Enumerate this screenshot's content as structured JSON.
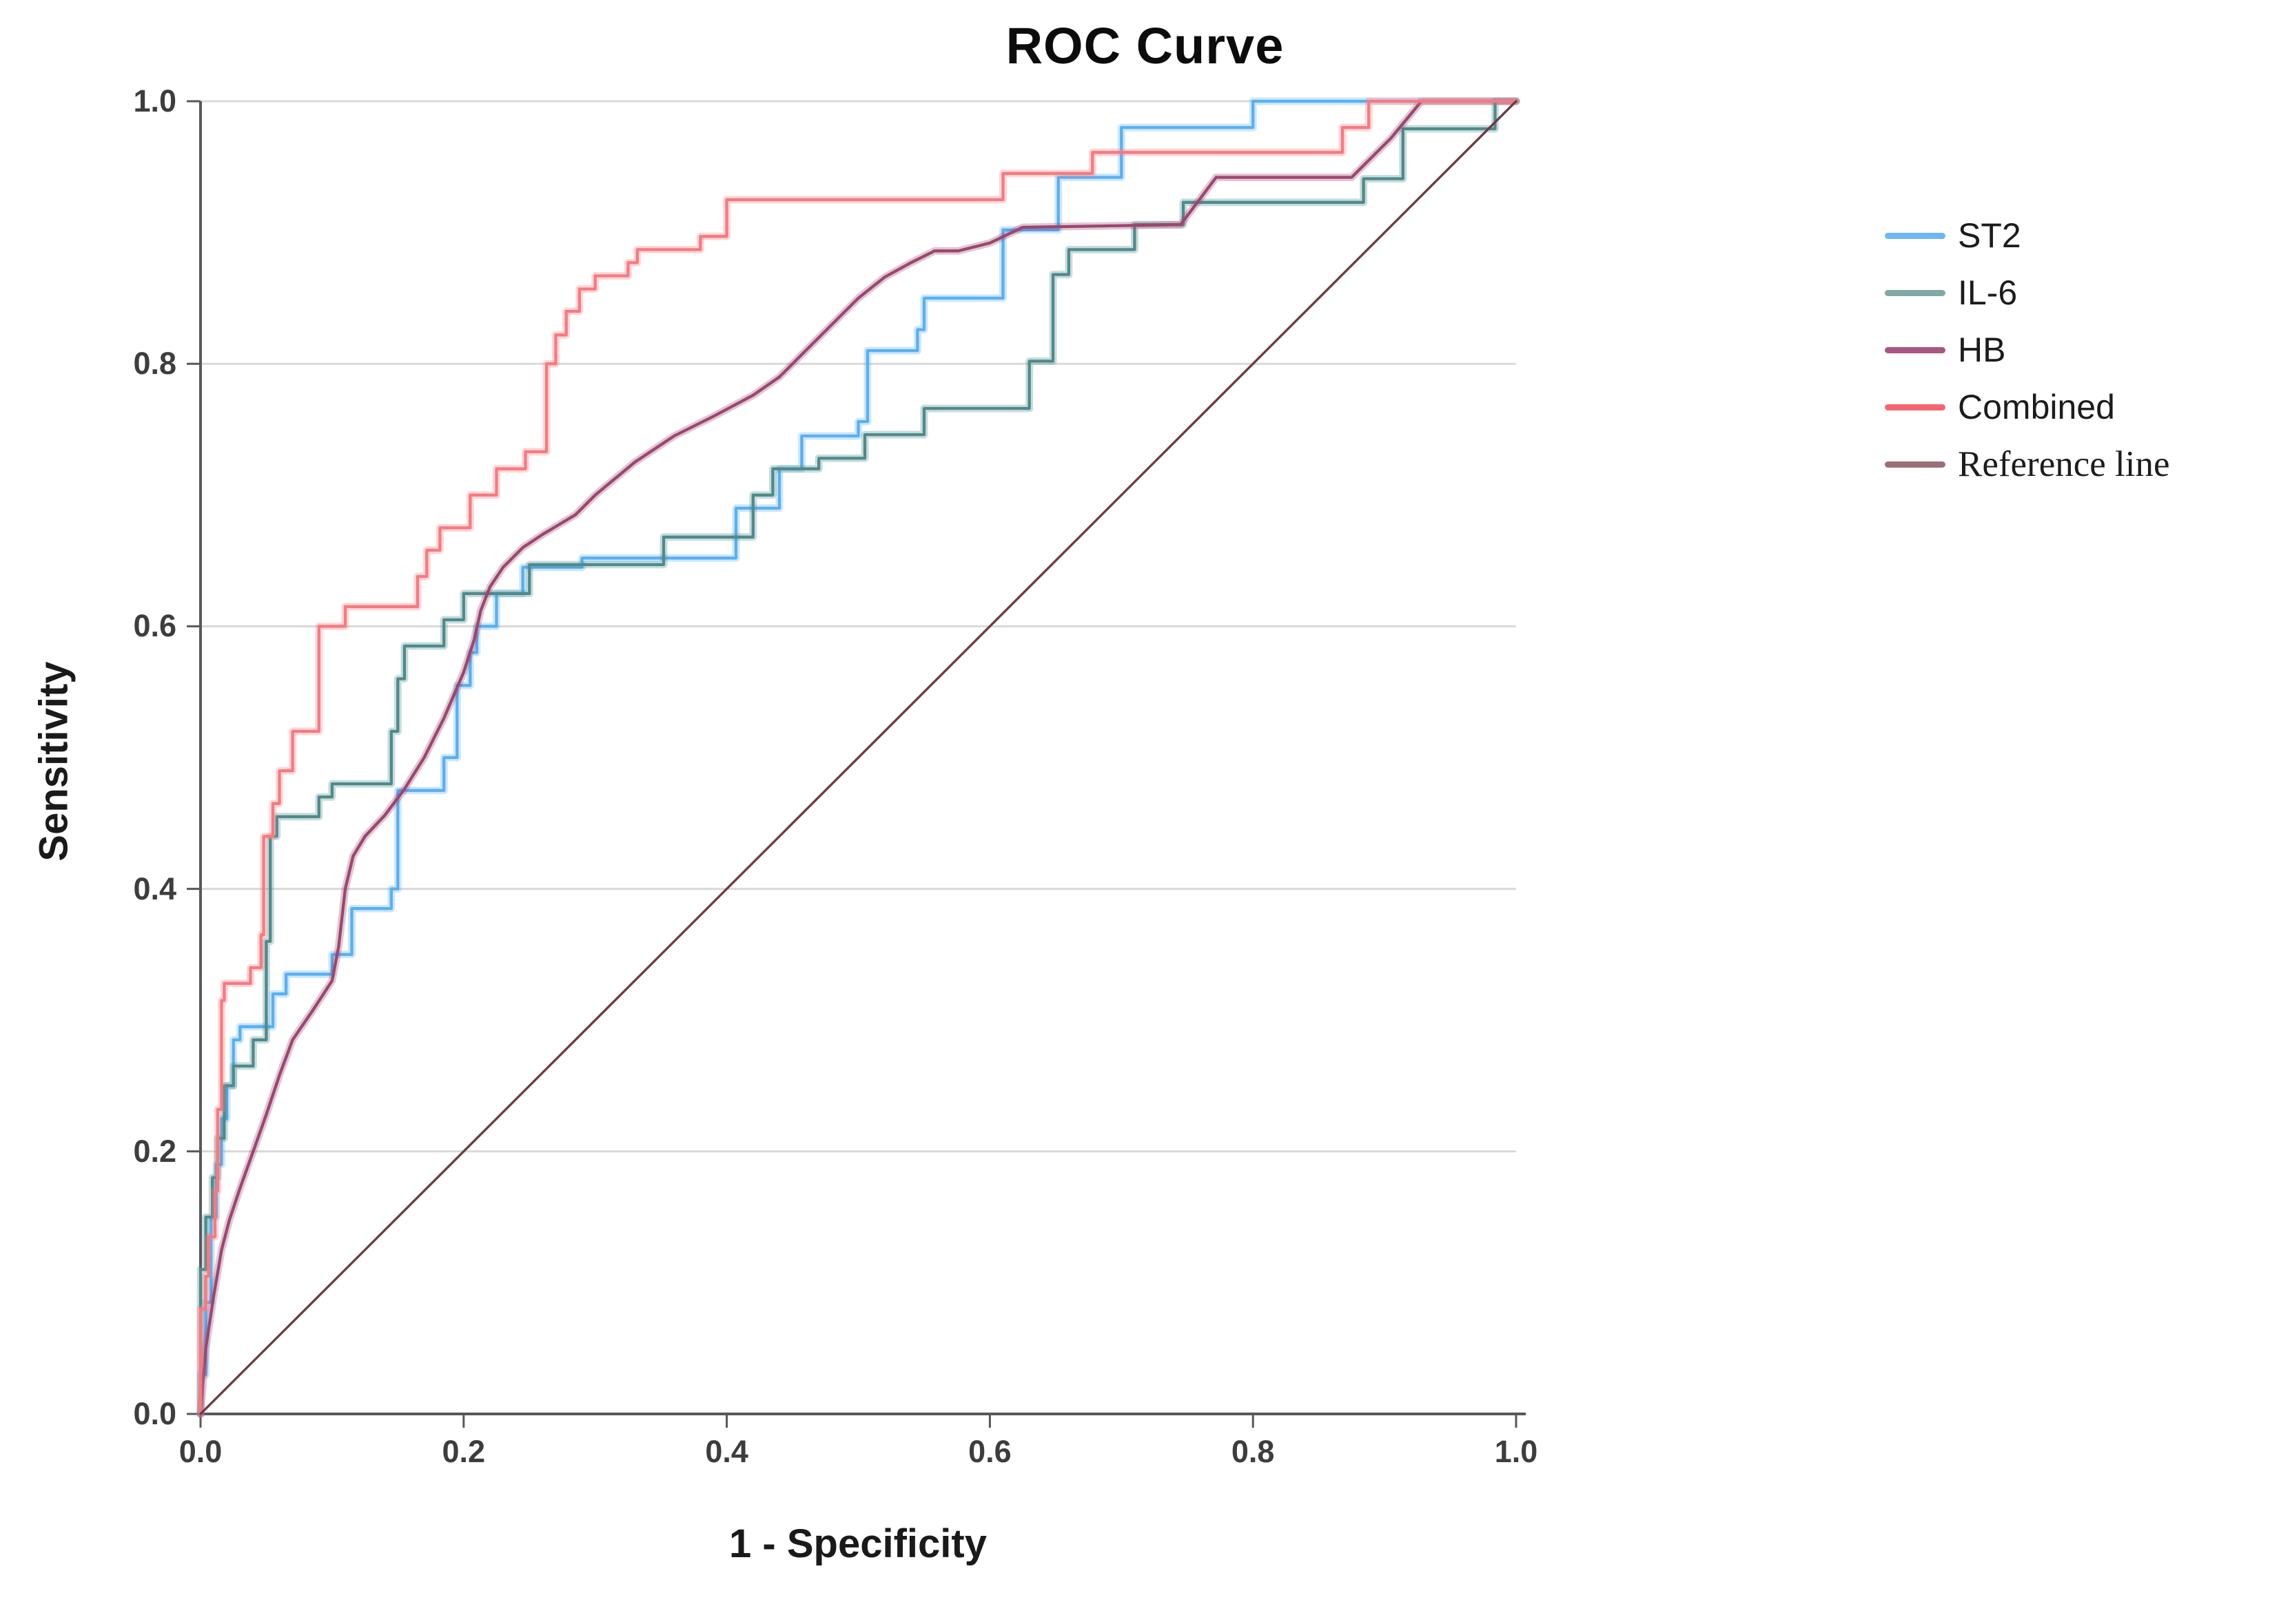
{
  "chart": {
    "title": "ROC Curve",
    "x_axis": {
      "label": "1 - Specificity",
      "tick_labels": [
        "0.0",
        "0.2",
        "0.4",
        "0.6",
        "0.8",
        "1.0"
      ],
      "tick_values": [
        0,
        0.2,
        0.4,
        0.6,
        0.8,
        1.0
      ]
    },
    "y_axis": {
      "label": "Sensitivity",
      "tick_labels": [
        "0.0",
        "0.2",
        "0.4",
        "0.6",
        "0.8",
        "1.0"
      ],
      "tick_values": [
        0,
        0.2,
        0.4,
        0.6,
        0.8,
        1.0
      ]
    },
    "colors": {
      "gridline": "#d9d9d9",
      "axis": "#58585a",
      "tick_text": "#3d3d3d",
      "background": "#ffffff"
    }
  },
  "legend": {
    "items": [
      {
        "label": "ST2",
        "color": "#6cb7f0",
        "serif": false
      },
      {
        "label": "IL-6",
        "color": "#7fa9a4",
        "serif": false
      },
      {
        "label": "HB",
        "color": "#a75782",
        "serif": false
      },
      {
        "label": "Combined",
        "color": "#f4666d",
        "serif": false
      },
      {
        "label": "Reference line",
        "color": "#9b6f77",
        "serif": true
      }
    ]
  },
  "chart_data": {
    "type": "line",
    "subtype": "roc-step-curves",
    "title": "ROC Curve",
    "xlabel": "1 - Specificity",
    "ylabel": "Sensitivity",
    "xlim": [
      0,
      1
    ],
    "ylim": [
      0,
      1
    ],
    "grid": "horizontal-only",
    "legend_position": "right",
    "series": [
      {
        "name": "ST2",
        "color": "#58b0f2",
        "line_style": "step",
        "halo": true,
        "points": [
          [
            0,
            0
          ],
          [
            0,
            0.03
          ],
          [
            0.004,
            0.03
          ],
          [
            0.004,
            0.085
          ],
          [
            0.008,
            0.085
          ],
          [
            0.008,
            0.15
          ],
          [
            0.012,
            0.15
          ],
          [
            0.012,
            0.19
          ],
          [
            0.016,
            0.19
          ],
          [
            0.016,
            0.225
          ],
          [
            0.02,
            0.225
          ],
          [
            0.02,
            0.25
          ],
          [
            0.025,
            0.25
          ],
          [
            0.025,
            0.285
          ],
          [
            0.03,
            0.285
          ],
          [
            0.03,
            0.295
          ],
          [
            0.055,
            0.295
          ],
          [
            0.055,
            0.32
          ],
          [
            0.065,
            0.32
          ],
          [
            0.065,
            0.335
          ],
          [
            0.1,
            0.335
          ],
          [
            0.1,
            0.35
          ],
          [
            0.115,
            0.35
          ],
          [
            0.115,
            0.385
          ],
          [
            0.145,
            0.385
          ],
          [
            0.145,
            0.4
          ],
          [
            0.15,
            0.4
          ],
          [
            0.15,
            0.475
          ],
          [
            0.185,
            0.475
          ],
          [
            0.185,
            0.5
          ],
          [
            0.195,
            0.5
          ],
          [
            0.195,
            0.555
          ],
          [
            0.205,
            0.555
          ],
          [
            0.205,
            0.58
          ],
          [
            0.21,
            0.58
          ],
          [
            0.21,
            0.6
          ],
          [
            0.225,
            0.6
          ],
          [
            0.225,
            0.625
          ],
          [
            0.245,
            0.625
          ],
          [
            0.245,
            0.645
          ],
          [
            0.29,
            0.645
          ],
          [
            0.29,
            0.652
          ],
          [
            0.407,
            0.652
          ],
          [
            0.407,
            0.69
          ],
          [
            0.44,
            0.69
          ],
          [
            0.44,
            0.72
          ],
          [
            0.457,
            0.72
          ],
          [
            0.457,
            0.745
          ],
          [
            0.5,
            0.745
          ],
          [
            0.5,
            0.756
          ],
          [
            0.507,
            0.756
          ],
          [
            0.507,
            0.81
          ],
          [
            0.545,
            0.81
          ],
          [
            0.545,
            0.826
          ],
          [
            0.55,
            0.826
          ],
          [
            0.55,
            0.85
          ],
          [
            0.61,
            0.85
          ],
          [
            0.61,
            0.902
          ],
          [
            0.652,
            0.902
          ],
          [
            0.652,
            0.942
          ],
          [
            0.7,
            0.942
          ],
          [
            0.7,
            0.98
          ],
          [
            0.8,
            0.98
          ],
          [
            0.8,
            1
          ],
          [
            1,
            1
          ]
        ]
      },
      {
        "name": "IL-6",
        "color": "#4e8b8c",
        "line_style": "step",
        "halo": true,
        "points": [
          [
            0,
            0
          ],
          [
            0,
            0.11
          ],
          [
            0.004,
            0.11
          ],
          [
            0.004,
            0.15
          ],
          [
            0.009,
            0.15
          ],
          [
            0.009,
            0.18
          ],
          [
            0.013,
            0.18
          ],
          [
            0.013,
            0.21
          ],
          [
            0.018,
            0.21
          ],
          [
            0.018,
            0.25
          ],
          [
            0.025,
            0.25
          ],
          [
            0.025,
            0.265
          ],
          [
            0.04,
            0.265
          ],
          [
            0.04,
            0.285
          ],
          [
            0.05,
            0.285
          ],
          [
            0.05,
            0.36
          ],
          [
            0.053,
            0.36
          ],
          [
            0.053,
            0.44
          ],
          [
            0.058,
            0.44
          ],
          [
            0.058,
            0.455
          ],
          [
            0.09,
            0.455
          ],
          [
            0.09,
            0.47
          ],
          [
            0.1,
            0.47
          ],
          [
            0.1,
            0.48
          ],
          [
            0.145,
            0.48
          ],
          [
            0.145,
            0.52
          ],
          [
            0.15,
            0.52
          ],
          [
            0.15,
            0.56
          ],
          [
            0.155,
            0.56
          ],
          [
            0.155,
            0.585
          ],
          [
            0.185,
            0.585
          ],
          [
            0.185,
            0.605
          ],
          [
            0.2,
            0.605
          ],
          [
            0.2,
            0.625
          ],
          [
            0.25,
            0.625
          ],
          [
            0.25,
            0.647
          ],
          [
            0.352,
            0.647
          ],
          [
            0.352,
            0.668
          ],
          [
            0.42,
            0.668
          ],
          [
            0.42,
            0.7
          ],
          [
            0.435,
            0.7
          ],
          [
            0.435,
            0.72
          ],
          [
            0.47,
            0.72
          ],
          [
            0.47,
            0.728
          ],
          [
            0.505,
            0.728
          ],
          [
            0.505,
            0.746
          ],
          [
            0.55,
            0.746
          ],
          [
            0.55,
            0.766
          ],
          [
            0.63,
            0.766
          ],
          [
            0.63,
            0.802
          ],
          [
            0.648,
            0.802
          ],
          [
            0.648,
            0.868
          ],
          [
            0.66,
            0.868
          ],
          [
            0.66,
            0.887
          ],
          [
            0.71,
            0.887
          ],
          [
            0.71,
            0.906
          ],
          [
            0.747,
            0.906
          ],
          [
            0.747,
            0.923
          ],
          [
            0.884,
            0.923
          ],
          [
            0.884,
            0.941
          ],
          [
            0.914,
            0.941
          ],
          [
            0.914,
            0.979
          ],
          [
            0.984,
            0.979
          ],
          [
            0.984,
            1
          ],
          [
            1,
            1
          ]
        ]
      },
      {
        "name": "HB",
        "color": "#9c466f",
        "line_style": "poly",
        "halo": true,
        "points": [
          [
            0,
            0
          ],
          [
            0.004,
            0.05
          ],
          [
            0.01,
            0.09
          ],
          [
            0.016,
            0.125
          ],
          [
            0.022,
            0.148
          ],
          [
            0.03,
            0.172
          ],
          [
            0.04,
            0.2
          ],
          [
            0.05,
            0.228
          ],
          [
            0.06,
            0.258
          ],
          [
            0.07,
            0.285
          ],
          [
            0.085,
            0.307
          ],
          [
            0.1,
            0.33
          ],
          [
            0.105,
            0.356
          ],
          [
            0.11,
            0.4
          ],
          [
            0.116,
            0.425
          ],
          [
            0.125,
            0.44
          ],
          [
            0.14,
            0.456
          ],
          [
            0.155,
            0.476
          ],
          [
            0.17,
            0.5
          ],
          [
            0.185,
            0.53
          ],
          [
            0.2,
            0.565
          ],
          [
            0.208,
            0.59
          ],
          [
            0.213,
            0.612
          ],
          [
            0.22,
            0.63
          ],
          [
            0.23,
            0.645
          ],
          [
            0.245,
            0.66
          ],
          [
            0.26,
            0.67
          ],
          [
            0.285,
            0.685
          ],
          [
            0.3,
            0.7
          ],
          [
            0.33,
            0.725
          ],
          [
            0.36,
            0.745
          ],
          [
            0.39,
            0.76
          ],
          [
            0.42,
            0.776
          ],
          [
            0.44,
            0.79
          ],
          [
            0.46,
            0.81
          ],
          [
            0.48,
            0.83
          ],
          [
            0.5,
            0.85
          ],
          [
            0.52,
            0.866
          ],
          [
            0.54,
            0.877
          ],
          [
            0.558,
            0.886
          ],
          [
            0.576,
            0.886
          ],
          [
            0.6,
            0.892
          ],
          [
            0.625,
            0.904
          ],
          [
            0.745,
            0.906
          ],
          [
            0.772,
            0.942
          ],
          [
            0.875,
            0.942
          ],
          [
            0.905,
            0.972
          ],
          [
            0.928,
            1
          ],
          [
            1,
            1
          ]
        ]
      },
      {
        "name": "Combined",
        "color": "#f8797f",
        "line_style": "step",
        "halo": true,
        "points": [
          [
            0,
            0
          ],
          [
            0,
            0.08
          ],
          [
            0.004,
            0.08
          ],
          [
            0.004,
            0.105
          ],
          [
            0.006,
            0.105
          ],
          [
            0.006,
            0.135
          ],
          [
            0.011,
            0.135
          ],
          [
            0.011,
            0.17
          ],
          [
            0.013,
            0.17
          ],
          [
            0.013,
            0.232
          ],
          [
            0.016,
            0.232
          ],
          [
            0.016,
            0.315
          ],
          [
            0.018,
            0.315
          ],
          [
            0.018,
            0.328
          ],
          [
            0.038,
            0.328
          ],
          [
            0.038,
            0.34
          ],
          [
            0.046,
            0.34
          ],
          [
            0.046,
            0.365
          ],
          [
            0.048,
            0.365
          ],
          [
            0.048,
            0.44
          ],
          [
            0.055,
            0.44
          ],
          [
            0.055,
            0.465
          ],
          [
            0.06,
            0.465
          ],
          [
            0.06,
            0.49
          ],
          [
            0.07,
            0.49
          ],
          [
            0.07,
            0.52
          ],
          [
            0.09,
            0.52
          ],
          [
            0.09,
            0.6
          ],
          [
            0.11,
            0.6
          ],
          [
            0.11,
            0.615
          ],
          [
            0.165,
            0.615
          ],
          [
            0.165,
            0.638
          ],
          [
            0.172,
            0.638
          ],
          [
            0.172,
            0.658
          ],
          [
            0.182,
            0.658
          ],
          [
            0.182,
            0.675
          ],
          [
            0.205,
            0.675
          ],
          [
            0.205,
            0.7
          ],
          [
            0.225,
            0.7
          ],
          [
            0.225,
            0.72
          ],
          [
            0.247,
            0.72
          ],
          [
            0.247,
            0.733
          ],
          [
            0.263,
            0.733
          ],
          [
            0.263,
            0.8
          ],
          [
            0.27,
            0.8
          ],
          [
            0.27,
            0.822
          ],
          [
            0.278,
            0.822
          ],
          [
            0.278,
            0.84
          ],
          [
            0.288,
            0.84
          ],
          [
            0.288,
            0.857
          ],
          [
            0.3,
            0.857
          ],
          [
            0.3,
            0.867
          ],
          [
            0.325,
            0.867
          ],
          [
            0.325,
            0.877
          ],
          [
            0.332,
            0.877
          ],
          [
            0.332,
            0.887
          ],
          [
            0.38,
            0.887
          ],
          [
            0.38,
            0.897
          ],
          [
            0.4,
            0.897
          ],
          [
            0.4,
            0.925
          ],
          [
            0.61,
            0.925
          ],
          [
            0.61,
            0.945
          ],
          [
            0.678,
            0.945
          ],
          [
            0.678,
            0.961
          ],
          [
            0.868,
            0.961
          ],
          [
            0.868,
            0.98
          ],
          [
            0.888,
            0.98
          ],
          [
            0.888,
            1
          ],
          [
            1,
            1
          ]
        ]
      },
      {
        "name": "Reference line",
        "color": "#6e3b44",
        "line_style": "poly",
        "halo": false,
        "points": [
          [
            0,
            0
          ],
          [
            1,
            1
          ]
        ]
      }
    ]
  }
}
